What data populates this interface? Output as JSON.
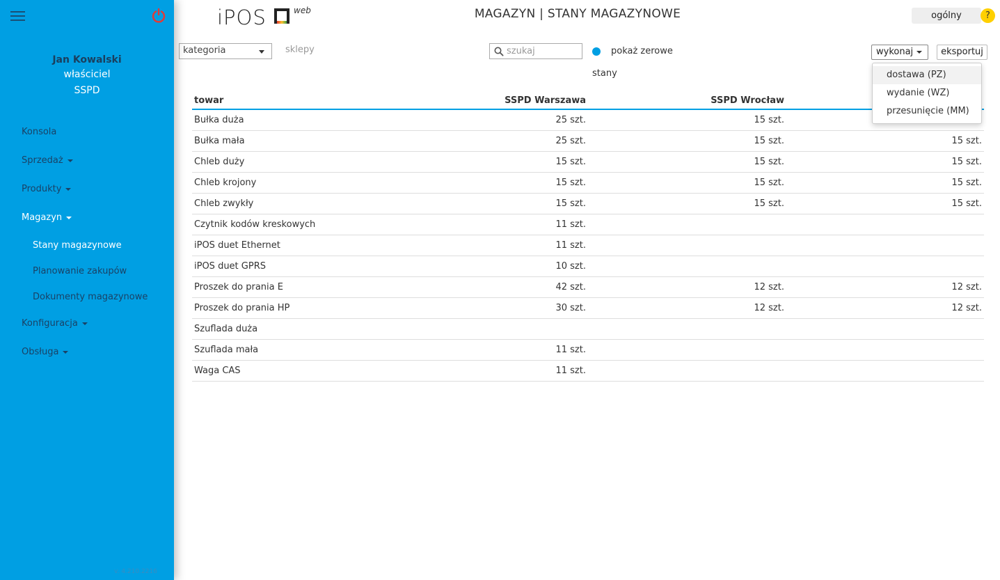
{
  "header": {
    "logo_text": "iPOS",
    "logo_suffix": "web",
    "title": "MAGAZYN | STANY MAGAZYNOWE",
    "context": "ogólny",
    "help": "?"
  },
  "user": {
    "name": "Jan Kowalski",
    "role": "właściciel",
    "company": "SSPD"
  },
  "sidebar": {
    "items": [
      {
        "label": "Konsola"
      },
      {
        "label": "Sprzedaż"
      },
      {
        "label": "Produkty"
      },
      {
        "label": "Magazyn"
      },
      {
        "label": "Stany magazynowe"
      },
      {
        "label": "Planowanie zakupów"
      },
      {
        "label": "Dokumenty magazynowe"
      },
      {
        "label": "Konfiguracja"
      },
      {
        "label": "Obsługa"
      }
    ],
    "version": "v. 4.210.2216"
  },
  "toolbar": {
    "category": "kategoria",
    "shops": "sklepy",
    "search_placeholder": "szukaj",
    "zero_label_line1": "pokaż zerowe",
    "zero_label_line2": "stany",
    "execute": "wykonaj",
    "export": "eksportuj"
  },
  "execute_menu": [
    "dostawa (PZ)",
    "wydanie (WZ)",
    "przesunięcie (MM)"
  ],
  "table": {
    "headers": [
      "towar",
      "SSPD Warszawa",
      "SSPD Wrocław",
      ""
    ],
    "rows": [
      [
        "Bułka duża",
        "25 szt.",
        "15 szt.",
        ""
      ],
      [
        "Bułka mała",
        "25 szt.",
        "15 szt.",
        "15 szt."
      ],
      [
        "Chleb duży",
        "15 szt.",
        "15 szt.",
        "15 szt."
      ],
      [
        "Chleb krojony",
        "15 szt.",
        "15 szt.",
        "15 szt."
      ],
      [
        "Chleb zwykły",
        "15 szt.",
        "15 szt.",
        "15 szt."
      ],
      [
        "Czytnik kodów kreskowych",
        "11 szt.",
        "",
        ""
      ],
      [
        "iPOS duet Ethernet",
        "11 szt.",
        "",
        ""
      ],
      [
        "iPOS duet GPRS",
        "10 szt.",
        "",
        ""
      ],
      [
        "Proszek do prania E",
        "42 szt.",
        "12 szt.",
        "12 szt."
      ],
      [
        "Proszek do prania HP",
        "30 szt.",
        "12 szt.",
        "12 szt."
      ],
      [
        "Szuflada duża",
        "",
        "",
        ""
      ],
      [
        "Szuflada mała",
        "11 szt.",
        "",
        ""
      ],
      [
        "Waga CAS",
        "11 szt.",
        "",
        ""
      ]
    ]
  },
  "colors": {
    "accent": "#009fe3",
    "power": "#e53935",
    "help": "#ffd000"
  }
}
